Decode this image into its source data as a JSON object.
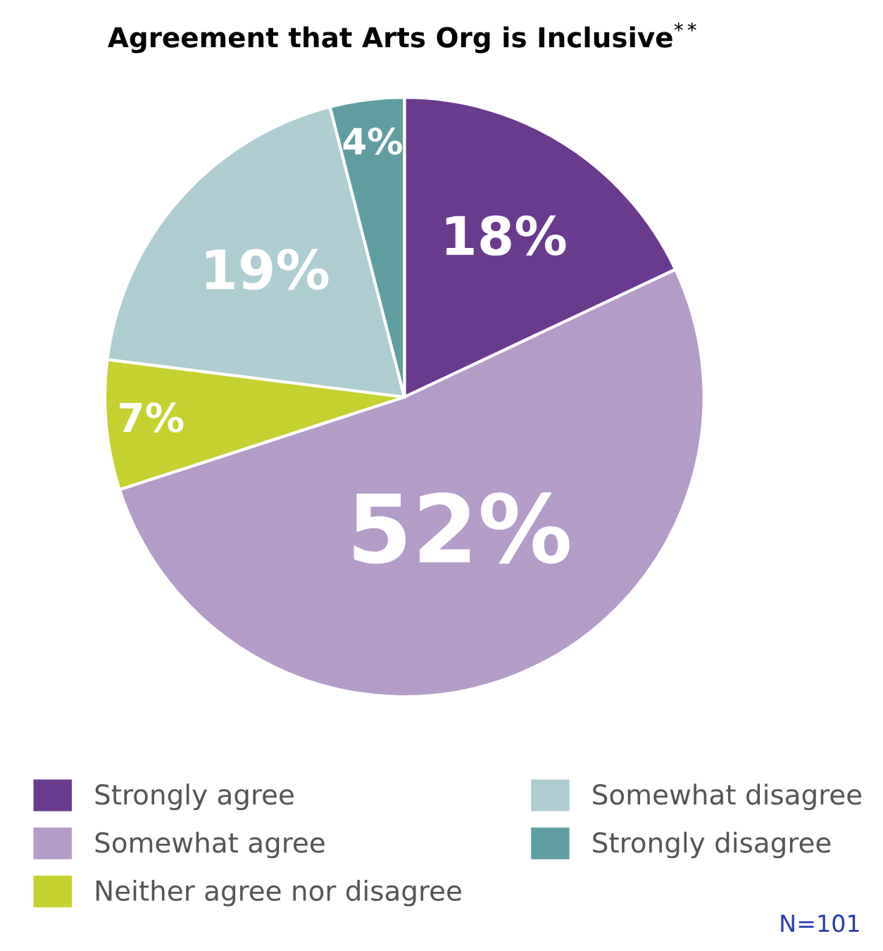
{
  "chart_data": {
    "type": "pie",
    "title": "Agreement that Arts Org is Inclusive$^{**}$",
    "categories": [
      "Strongly agree",
      "Somewhat agree",
      "Neither agree nor disagree",
      "Somewhat disagree",
      "Strongly disagree"
    ],
    "values": [
      18,
      52,
      7,
      19,
      4
    ],
    "colors": [
      "#6a3a8f",
      "#b39cc8",
      "#c5d12e",
      "#aecdd0",
      "#5f9ea0"
    ],
    "value_labels": [
      "18%",
      "52%",
      "7%",
      "19%",
      "4%"
    ],
    "legend": "bottom",
    "annotations": [
      "N=101"
    ]
  }
}
